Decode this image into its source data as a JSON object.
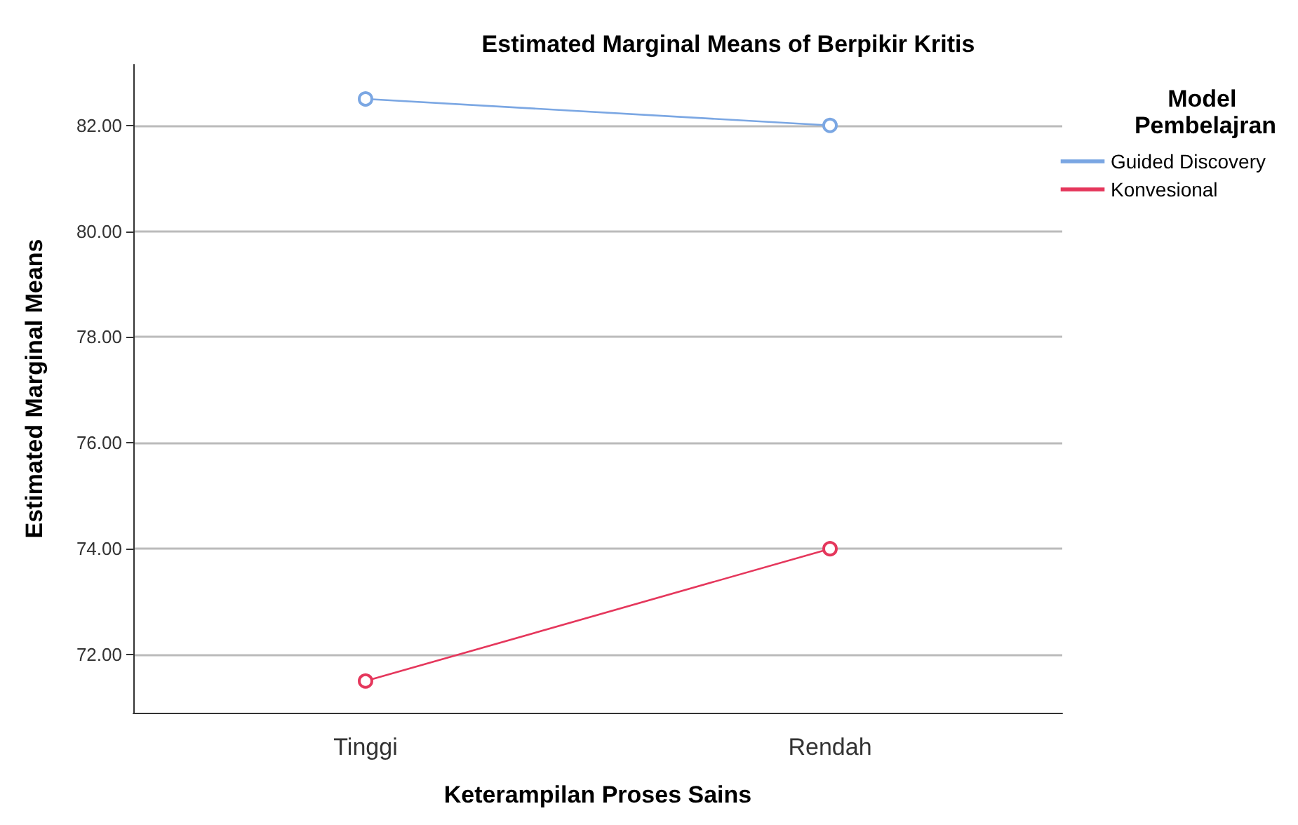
{
  "chart_data": {
    "type": "line",
    "title": "Estimated Marginal Means of Berpikir Kritis",
    "xlabel": "Keterampilan Proses Sains",
    "ylabel": "Estimated Marginal Means",
    "legend_title": "Model Pembelajran",
    "categories": [
      "Tinggi",
      "Rendah"
    ],
    "series": [
      {
        "name": "Guided Discovery",
        "color": "#7ba7e3",
        "values": [
          82.5,
          82.0
        ]
      },
      {
        "name": "Konvesional",
        "color": "#e5375c",
        "values": [
          71.5,
          74.0
        ]
      }
    ],
    "ylim": [
      70.9,
      83.15
    ],
    "yticks": [
      {
        "value": 72,
        "label": "72.00"
      },
      {
        "value": 74,
        "label": "74.00"
      },
      {
        "value": 76,
        "label": "76.00"
      },
      {
        "value": 78,
        "label": "78.00"
      },
      {
        "value": 80,
        "label": "80.00"
      },
      {
        "value": 82,
        "label": "82.00"
      }
    ],
    "grid": "y",
    "legend": "top right",
    "marker": "circle",
    "line_style": "solid"
  }
}
